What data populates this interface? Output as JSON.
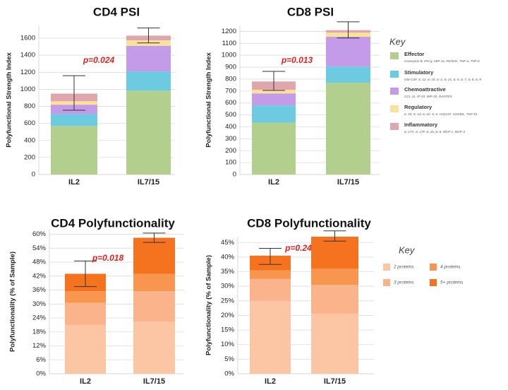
{
  "chart_data": [
    {
      "type": "bar",
      "stacked": true,
      "title": "CD4 PSI",
      "ylabel": "Polyfunctional Strength Index",
      "categories": [
        "IL2",
        "IL7/15"
      ],
      "ylim": [
        0,
        1750
      ],
      "yticks": [
        "0",
        "200",
        "400",
        "600",
        "800",
        "1000",
        "1200",
        "1400",
        "1600"
      ],
      "ytick_values": [
        0,
        200,
        400,
        600,
        800,
        1000,
        1200,
        1400,
        1600
      ],
      "series": [
        {
          "key": "effector",
          "values": [
            570,
            985
          ]
        },
        {
          "key": "stimulatory",
          "values": [
            140,
            225
          ]
        },
        {
          "key": "chemoattractive",
          "values": [
            110,
            300
          ]
        },
        {
          "key": "regulatory",
          "values": [
            40,
            65
          ]
        },
        {
          "key": "inflammatory",
          "values": [
            90,
            55
          ]
        }
      ],
      "error_bars": [
        {
          "low": 755,
          "high": 1160
        },
        {
          "low": 1545,
          "high": 1720
        }
      ],
      "pvalue": "p=0.024"
    },
    {
      "type": "bar",
      "stacked": true,
      "title": "CD8 PSI",
      "ylabel": "Polyfunctional Strength Index",
      "categories": [
        "IL2",
        "IL7/15"
      ],
      "ylim": [
        0,
        1250
      ],
      "yticks": [
        "0",
        "100",
        "200",
        "300",
        "400",
        "500",
        "600",
        "700",
        "800",
        "900",
        "1000",
        "1100",
        "1200"
      ],
      "ytick_values": [
        0,
        100,
        200,
        300,
        400,
        500,
        600,
        700,
        800,
        900,
        1000,
        1100,
        1200
      ],
      "series": [
        {
          "key": "effector",
          "values": [
            435,
            770
          ]
        },
        {
          "key": "stimulatory",
          "values": [
            145,
            135
          ]
        },
        {
          "key": "chemoattractive",
          "values": [
            100,
            250
          ]
        },
        {
          "key": "regulatory",
          "values": [
            30,
            35
          ]
        },
        {
          "key": "inflammatory",
          "values": [
            70,
            20
          ]
        }
      ],
      "error_bars": [
        {
          "low": 705,
          "high": 865
        },
        {
          "low": 1145,
          "high": 1280
        }
      ],
      "pvalue": "p=0.013"
    },
    {
      "type": "bar",
      "stacked": true,
      "title": "CD4 Polyfunctionality",
      "ylabel": "Polyfunctionality (% of Sample)",
      "categories": [
        "IL2",
        "IL7/15"
      ],
      "ylim": [
        0,
        62
      ],
      "yticks": [
        "0%",
        "6%",
        "12%",
        "18%",
        "24%",
        "30%",
        "36%",
        "42%",
        "48%",
        "54%",
        "60%"
      ],
      "ytick_values": [
        0,
        6,
        12,
        18,
        24,
        30,
        36,
        42,
        48,
        54,
        60
      ],
      "series": [
        {
          "key": "p2",
          "values": [
            21,
            22.5
          ]
        },
        {
          "key": "p3",
          "values": [
            9.5,
            13
          ]
        },
        {
          "key": "p4",
          "values": [
            5,
            7.5
          ]
        },
        {
          "key": "p5",
          "values": [
            7.5,
            15.5
          ]
        }
      ],
      "error_bars": [
        {
          "low": 37.5,
          "high": 48.5
        },
        {
          "low": 56.5,
          "high": 60.5
        }
      ],
      "pvalue": "p=0.018"
    },
    {
      "type": "bar",
      "stacked": true,
      "title": "CD8 Polyfunctionality",
      "ylabel": "Polyfunctionality (% of Sample)",
      "categories": [
        "IL2",
        "IL7/15"
      ],
      "ylim": [
        0,
        47
      ],
      "yticks": [
        "0%",
        "5%",
        "10%",
        "15%",
        "20%",
        "25%",
        "30%",
        "35%",
        "40%",
        "45%"
      ],
      "ytick_values": [
        0,
        5,
        10,
        15,
        20,
        25,
        30,
        35,
        40,
        45
      ],
      "series": [
        {
          "key": "p2",
          "values": [
            25,
            20.5
          ]
        },
        {
          "key": "p3",
          "values": [
            7.5,
            10
          ]
        },
        {
          "key": "p4",
          "values": [
            3,
            5.5
          ]
        },
        {
          "key": "p5",
          "values": [
            5,
            11
          ]
        }
      ],
      "error_bars": [
        {
          "low": 37.5,
          "high": 43
        },
        {
          "low": 45.5,
          "high": 49
        }
      ],
      "pvalue": "p=0.24"
    }
  ],
  "key_psi": {
    "title": "Key",
    "items": [
      {
        "key": "effector",
        "color": "#b3cf8e",
        "label": "Effector",
        "sublabel": "Granzyme B, IFN-g, MIP-1a, Perforin, TNF-a, TNF-b"
      },
      {
        "key": "stimulatory",
        "color": "#6ccbe0",
        "label": "Stimulatory",
        "sublabel": "GM-CSF, IL-12, IL-15, IL-2, IL-21, IL-5, IL-7, IL-8, IL-9"
      },
      {
        "key": "chemoattractive",
        "color": "#c49be8",
        "label": "Chemoattractive",
        "sublabel": "CCL-11, IP-10, MIP-1b, RANTES"
      },
      {
        "key": "regulatory",
        "color": "#fbe29a",
        "label": "Regulatory",
        "sublabel": "IL-10, IL-13, IL-22, IL-4, sCD137, sCD40L, TGF-b1"
      },
      {
        "key": "inflammatory",
        "color": "#dfa7ad",
        "label": "Inflammatory",
        "sublabel": "IL-17A, IL-17F, IL-1b, IL-6, MCP-1, MCP-4"
      }
    ]
  },
  "key_poly": {
    "title": "Key",
    "items": [
      {
        "key": "p2",
        "color": "#fcc6a5",
        "label": "2 proteins"
      },
      {
        "key": "p4",
        "color": "#f89650",
        "label": "4 proteins"
      },
      {
        "key": "p3",
        "color": "#fab38b",
        "label": "3 proteins"
      },
      {
        "key": "p5",
        "color": "#f5731f",
        "label": "5+ proteins"
      }
    ]
  }
}
